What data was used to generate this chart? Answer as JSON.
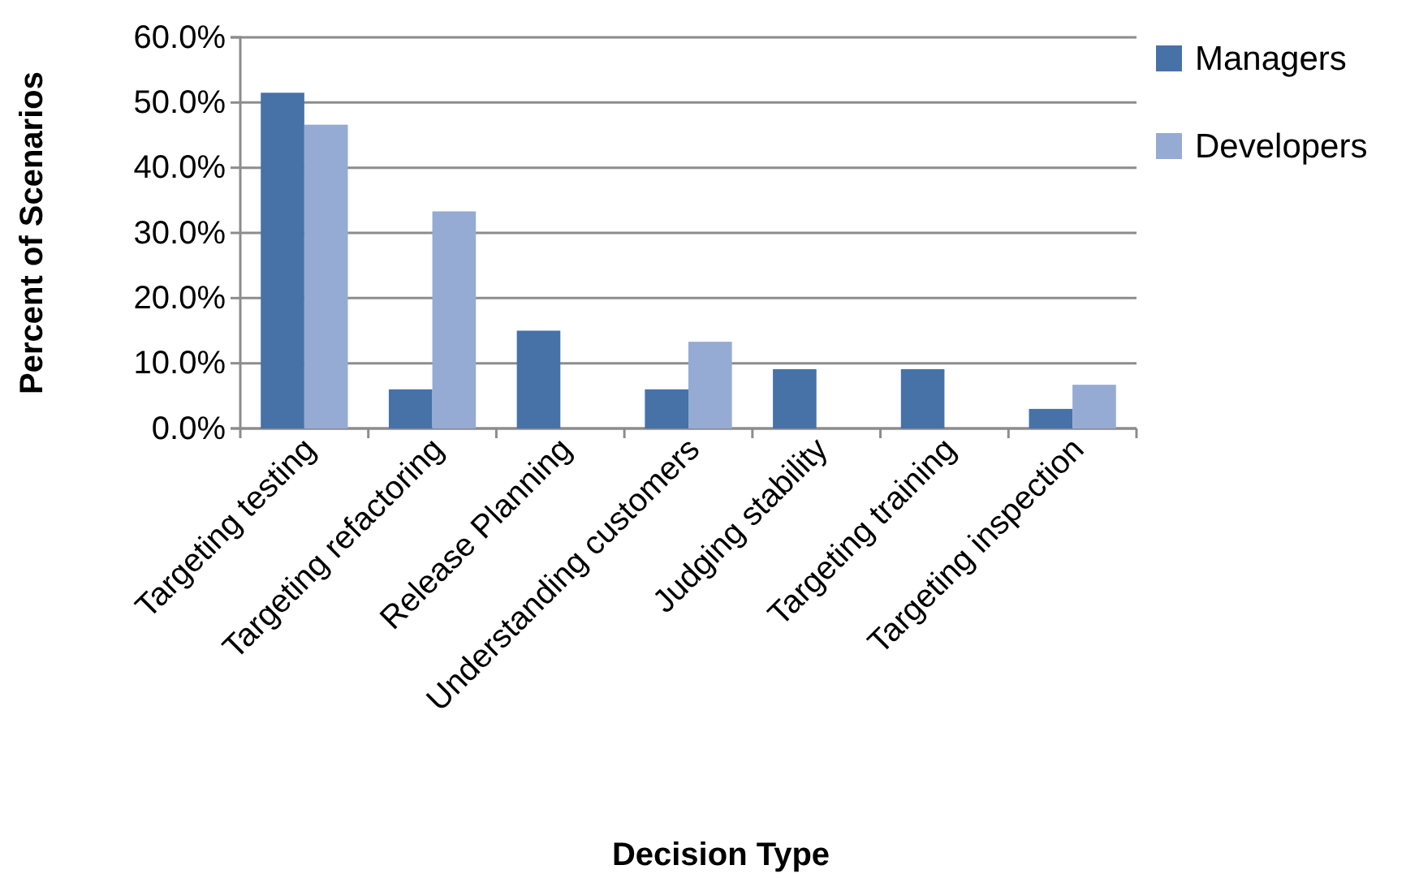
{
  "chart_data": {
    "type": "bar",
    "xlabel": "Decision Type",
    "ylabel": "Percent of Scenarios",
    "categories": [
      "Targeting testing",
      "Targeting refactoring",
      "Release Planning",
      "Understanding customers",
      "Judging stability",
      "Targeting training",
      "Targeting inspection"
    ],
    "series": [
      {
        "name": "Managers",
        "color": "#4672a8",
        "values": [
          51.5,
          6.0,
          15.0,
          6.0,
          9.1,
          9.1,
          3.0
        ]
      },
      {
        "name": "Developers",
        "color": "#95abd3",
        "values": [
          46.6,
          33.3,
          null,
          13.3,
          null,
          null,
          6.7
        ]
      }
    ],
    "ylim": [
      0,
      60
    ],
    "yticks": [
      {
        "value": 0,
        "label": "0.0%"
      },
      {
        "value": 10,
        "label": "10.0%"
      },
      {
        "value": 20,
        "label": "20.0%"
      },
      {
        "value": 30,
        "label": "30.0%"
      },
      {
        "value": 40,
        "label": "40.0%"
      },
      {
        "value": 50,
        "label": "50.0%"
      },
      {
        "value": 60,
        "label": "60.0%"
      }
    ],
    "grid": "y",
    "legend": "top right"
  }
}
